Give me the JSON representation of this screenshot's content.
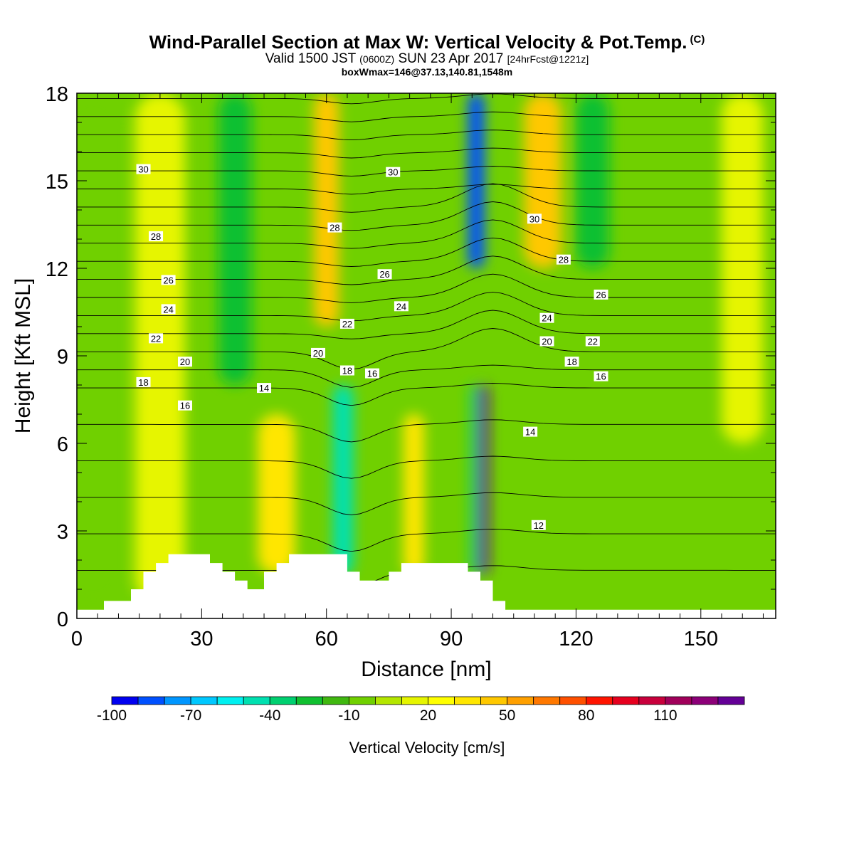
{
  "title": "Wind-Parallel Section at Max W: Vertical Velocity & Pot.Temp.",
  "copyright_mark": "(C)",
  "subtitle": {
    "valid": "Valid 1500 JST",
    "utc": "(0600Z)",
    "date": "SUN 23 Apr 2017",
    "fcst": "[24hrFcst@1221z]"
  },
  "subtitle2": "boxWmax=146@37.13,140.81,1548m",
  "chart_data": {
    "type": "heatmap",
    "xlabel": "Distance [nm]",
    "ylabel": "Height [Kft MSL]",
    "xlim": [
      0,
      168
    ],
    "ylim": [
      0,
      18
    ],
    "xticks": [
      0,
      30,
      60,
      90,
      120,
      150
    ],
    "yticks": [
      0,
      3,
      6,
      9,
      12,
      15,
      18
    ],
    "colorbar": {
      "title": "Vertical Velocity [cm/s]",
      "min": -100,
      "max": 130,
      "step": 10,
      "tick_labels": [
        "-100",
        "-70",
        "-40",
        "-10",
        "20",
        "50",
        "80",
        "110"
      ],
      "colors": [
        "#0000f0",
        "#0050ff",
        "#0096ff",
        "#00c8ff",
        "#00f0f0",
        "#00e0b0",
        "#00d070",
        "#10c030",
        "#40b810",
        "#70d000",
        "#b4e600",
        "#e6f500",
        "#ffff00",
        "#ffe600",
        "#ffc800",
        "#ffa000",
        "#ff7800",
        "#ff5000",
        "#ff1400",
        "#e6001e",
        "#c8003c",
        "#a0005a",
        "#8c0078",
        "#640096"
      ]
    },
    "vertical_velocity_features": [
      {
        "x": 4,
        "y_bottom": 0.5,
        "y_top": 18,
        "width": 14,
        "w": -5
      },
      {
        "x": 20,
        "y_bottom": 0.5,
        "y_top": 18,
        "width": 12,
        "w": 10
      },
      {
        "x": 38,
        "y_bottom": 8,
        "y_top": 18,
        "width": 8,
        "w": -30
      },
      {
        "x": 48,
        "y_bottom": 1.5,
        "y_top": 7,
        "width": 9,
        "w": 30
      },
      {
        "x": 60,
        "y_bottom": 10,
        "y_top": 18,
        "width": 6,
        "w": 45
      },
      {
        "x": 64,
        "y_bottom": 1.5,
        "y_top": 8,
        "width": 5,
        "w": -45
      },
      {
        "x": 81,
        "y_bottom": 1.5,
        "y_top": 7,
        "width": 5,
        "w": 30
      },
      {
        "x": 96,
        "y_bottom": 12,
        "y_top": 18,
        "width": 4,
        "w": -90
      },
      {
        "x": 97.5,
        "y_bottom": 1.5,
        "y_top": 8,
        "width": 3,
        "w": 140
      },
      {
        "x": 95.5,
        "y_bottom": 1.5,
        "y_top": 8,
        "width": 2,
        "w": -40
      },
      {
        "x": 112,
        "y_bottom": 12,
        "y_top": 18,
        "width": 9,
        "w": 40
      },
      {
        "x": 124,
        "y_bottom": 12,
        "y_top": 18,
        "width": 8,
        "w": -30
      },
      {
        "x": 160,
        "y_bottom": 6,
        "y_top": 18,
        "width": 10,
        "w": 10
      }
    ],
    "terrain_profile": {
      "x": [
        0,
        6.5,
        6.5,
        13,
        13,
        16,
        16,
        19,
        19,
        22,
        22,
        25,
        25,
        32,
        32,
        35,
        35,
        38,
        38,
        41,
        41,
        45,
        45,
        48,
        48,
        51,
        51,
        54,
        54,
        65,
        65,
        68,
        68,
        75,
        75,
        78,
        78,
        94,
        94,
        97,
        97,
        100,
        100,
        103,
        103,
        168
      ],
      "height": [
        0.3,
        0.3,
        0.6,
        0.6,
        1.0,
        1.0,
        1.6,
        1.6,
        1.9,
        1.9,
        2.2,
        2.2,
        2.2,
        2.2,
        1.9,
        1.9,
        1.6,
        1.6,
        1.3,
        1.3,
        1.0,
        1.0,
        1.6,
        1.6,
        1.9,
        1.9,
        2.2,
        2.2,
        2.2,
        2.2,
        1.6,
        1.6,
        1.3,
        1.3,
        1.6,
        1.6,
        1.9,
        1.9,
        1.6,
        1.6,
        1.3,
        1.3,
        0.6,
        0.6,
        0.3,
        0.3
      ]
    },
    "isentrope_labels": [
      {
        "text": "30",
        "x": 16,
        "y": 15.4
      },
      {
        "text": "30",
        "x": 76,
        "y": 15.3
      },
      {
        "text": "30",
        "x": 110,
        "y": 13.7
      },
      {
        "text": "28",
        "x": 19,
        "y": 13.1
      },
      {
        "text": "28",
        "x": 62,
        "y": 13.4
      },
      {
        "text": "28",
        "x": 117,
        "y": 12.3
      },
      {
        "text": "26",
        "x": 22,
        "y": 11.6
      },
      {
        "text": "26",
        "x": 74,
        "y": 11.8
      },
      {
        "text": "26",
        "x": 126,
        "y": 11.1
      },
      {
        "text": "24",
        "x": 22,
        "y": 10.6
      },
      {
        "text": "24",
        "x": 78,
        "y": 10.7
      },
      {
        "text": "24",
        "x": 113,
        "y": 10.3
      },
      {
        "text": "22",
        "x": 19,
        "y": 9.6
      },
      {
        "text": "22",
        "x": 65,
        "y": 10.1
      },
      {
        "text": "22",
        "x": 124,
        "y": 9.5
      },
      {
        "text": "20",
        "x": 26,
        "y": 8.8
      },
      {
        "text": "20",
        "x": 58,
        "y": 9.1
      },
      {
        "text": "20",
        "x": 113,
        "y": 9.5
      },
      {
        "text": "18",
        "x": 16,
        "y": 8.1
      },
      {
        "text": "18",
        "x": 65,
        "y": 8.5
      },
      {
        "text": "18",
        "x": 119,
        "y": 8.8
      },
      {
        "text": "16",
        "x": 26,
        "y": 7.3
      },
      {
        "text": "16",
        "x": 71,
        "y": 8.4
      },
      {
        "text": "16",
        "x": 126,
        "y": 8.3
      },
      {
        "text": "14",
        "x": 45,
        "y": 7.9
      },
      {
        "text": "14",
        "x": 109,
        "y": 6.4
      },
      {
        "text": "12",
        "x": 111,
        "y": 3.2
      }
    ]
  }
}
